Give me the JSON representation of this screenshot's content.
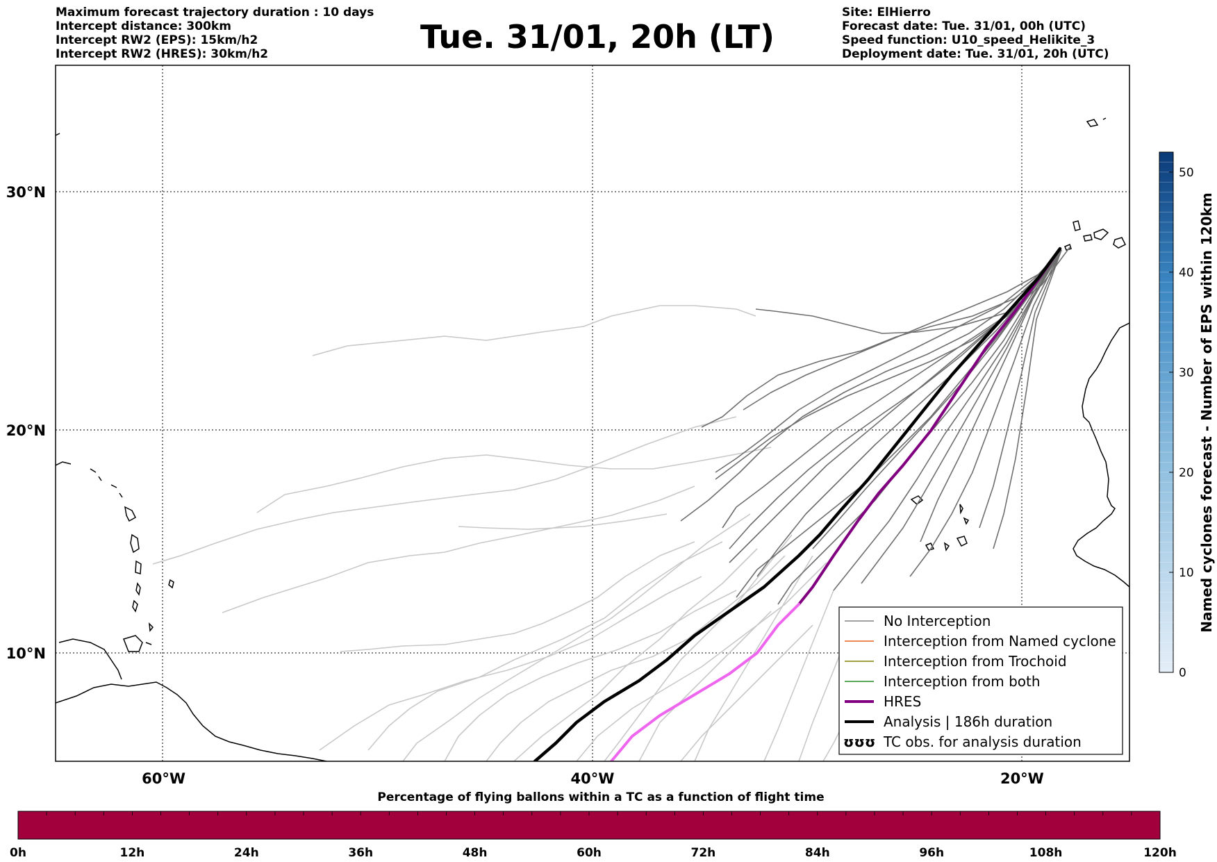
{
  "header": {
    "left_lines": [
      "Maximum forecast trajectory duration : 10 days",
      "Intercept distance: 300km",
      "Intercept RW2 (EPS):  15km/h2",
      "Intercept RW2 (HRES): 30km/h2"
    ],
    "title": "Tue. 31/01, 20h (LT)",
    "right_lines": [
      "Site: ElHierro",
      "Forecast date: Tue. 31/01, 00h (UTC)",
      "Speed function: U10_speed_Helikite_3",
      "Deployment date: Tue. 31/01, 20h (UTC)"
    ]
  },
  "map": {
    "lon_range": [
      -65,
      -15
    ],
    "lat_range": [
      5,
      35
    ],
    "lon_ticks": [
      {
        "value": -60,
        "label": "60°W"
      },
      {
        "value": -40,
        "label": "40°W"
      },
      {
        "value": -20,
        "label": "20°W"
      }
    ],
    "lat_ticks": [
      {
        "value": 30,
        "label": "30°N"
      },
      {
        "value": 20,
        "label": "20°N"
      },
      {
        "value": 10,
        "label": "10°N"
      }
    ],
    "launch_site": {
      "lon": -17.9,
      "lat": 27.7
    },
    "colors": {
      "ensemble_far": "#c8c8c8",
      "ensemble_near": "#6e6e6e",
      "hres_near": "#800080",
      "hres_far": "#ee66ee",
      "analysis": "#000000"
    }
  },
  "legend": {
    "items": [
      {
        "label": "No Interception",
        "color": "#808080",
        "kind": "line"
      },
      {
        "label": "Interception from Named cyclone",
        "color": "#e8611e",
        "kind": "line"
      },
      {
        "label": "Interception from Trochoid",
        "color": "#808000",
        "kind": "line"
      },
      {
        "label": "Interception from both",
        "color": "#228b22",
        "kind": "line"
      },
      {
        "label": "HRES",
        "color": "#800080",
        "kind": "thick"
      },
      {
        "label": "Analysis | 186h duration",
        "color": "#000000",
        "kind": "thick"
      },
      {
        "label": "TC obs. for analysis duration",
        "color": "#000000",
        "kind": "symbol",
        "symbol": "ʊʊʊ"
      }
    ]
  },
  "colorbar": {
    "label": "Named cyclones forecast - Number of EPS within 120km",
    "range": [
      0,
      52
    ],
    "ticks": [
      "0",
      "10",
      "20",
      "30",
      "40",
      "50"
    ],
    "color_low": "#e4eef8",
    "color_high": "#0a3a78"
  },
  "time_bar": {
    "title": "Percentage of flying ballons within a TC as a function of flight time",
    "fill_color": "#a1003c",
    "ticks": [
      "0h",
      "12h",
      "24h",
      "36h",
      "48h",
      "60h",
      "72h",
      "84h",
      "96h",
      "108h",
      "120h"
    ]
  }
}
